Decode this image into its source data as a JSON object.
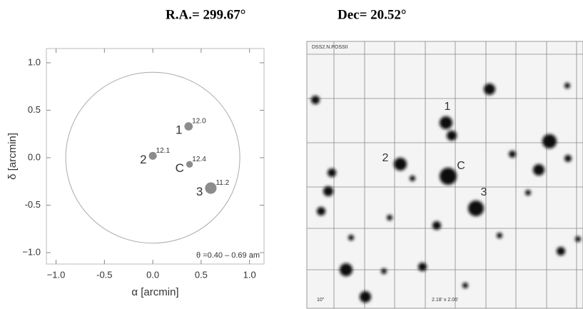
{
  "header": {
    "ra": "R.A.= 299.67°",
    "dec": "Dec= 20.52°"
  },
  "chart_data": {
    "type": "scatter",
    "xlabel": "α [arcmin]",
    "ylabel": "δ [arcmin]",
    "annotation": "θ =0.40 – 0.69 am",
    "names": [
      "1",
      "2",
      "C",
      "3"
    ],
    "x": [
      0.37,
      0.0,
      0.38,
      0.6
    ],
    "values": [
      0.33,
      0.02,
      -0.07,
      -0.32
    ],
    "sizes": [
      12.0,
      12.1,
      12.4,
      11.2
    ],
    "value_labels": [
      "12.0",
      "12.1",
      "12.4",
      "11.2"
    ],
    "color": "#8c8c8c",
    "circle": {
      "center": [
        0,
        0
      ],
      "radius": 0.9
    },
    "xlim": [
      -1.1,
      1.15
    ],
    "ylim": [
      -1.12,
      1.15
    ],
    "xticks": [
      {
        "value": -1,
        "label": "−1.0"
      },
      -0.5,
      {
        "value": 0,
        "label": "0.0"
      },
      0.5,
      {
        "value": 1,
        "label": "1.0"
      }
    ],
    "yticks": [
      {
        "value": -1,
        "label": "−1.0"
      },
      -0.5,
      {
        "value": 0,
        "label": "0.0"
      },
      0.5,
      {
        "value": 1,
        "label": "1.0"
      }
    ]
  },
  "image": {
    "survey": "DSS2.N.POSSII",
    "size": "2.18' x 2.06'",
    "corner": "10\"",
    "labels": [
      "1",
      "2",
      "C",
      "3"
    ]
  }
}
